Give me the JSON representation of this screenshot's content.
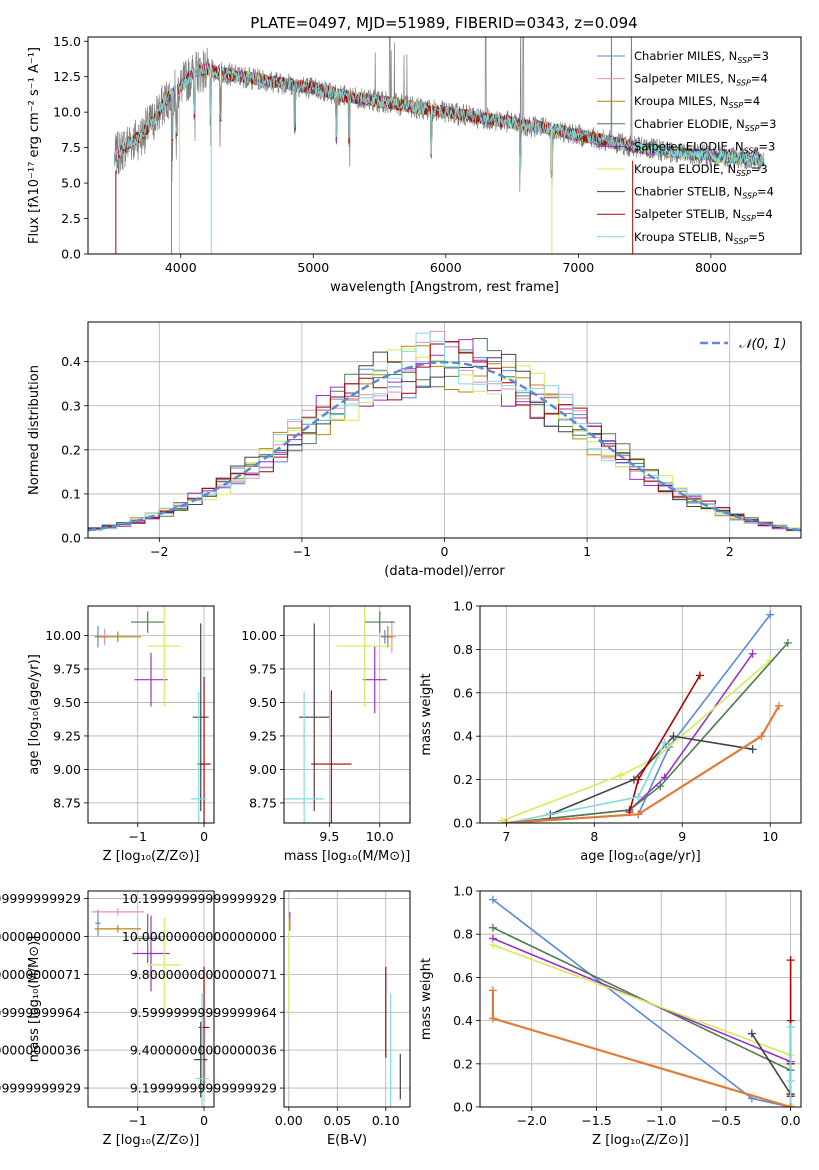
{
  "title": "PLATE=0497, MJD=51989, FIBERID=0343, z=0.094",
  "series_styles": [
    {
      "name": "Chabrier MILES",
      "nssp": "3",
      "color": "#5a8ad8"
    },
    {
      "name": "Salpeter MILES",
      "nssp": "4",
      "color": "#e88fc2"
    },
    {
      "name": "Kroupa MILES",
      "nssp": "4",
      "color": "#b8860b"
    },
    {
      "name": "Chabrier ELODIE",
      "nssp": "3",
      "color": "#4e7d4e"
    },
    {
      "name": "Salpeter ELODIE",
      "nssp": "3",
      "color": "#9932cc"
    },
    {
      "name": "Kroupa ELODIE",
      "nssp": "3",
      "color": "#d4ec5a"
    },
    {
      "name": "Chabrier STELIB",
      "nssp": "4",
      "color": "#444444"
    },
    {
      "name": "Salpeter STELIB",
      "nssp": "4",
      "color": "#b00000"
    },
    {
      "name": "Kroupa STELIB",
      "nssp": "5",
      "color": "#7fdbe0"
    }
  ],
  "extra_colors": {
    "data_gray": "#808080",
    "orange": "#e07b39",
    "normal_curve": "#5a8ad8"
  },
  "chart_data": [
    {
      "id": "spectrum",
      "type": "line",
      "xlabel": "wavelength [Angstrom, rest frame]",
      "ylabel": "Flux [fλ10⁻¹⁷ erg cm⁻² s⁻¹ A⁻¹]",
      "xlim": [
        3300,
        8680
      ],
      "ylim": [
        0,
        15.3
      ],
      "xticks": [
        4000,
        5000,
        6000,
        7000,
        8000
      ],
      "yticks": [
        0.0,
        2.5,
        5.0,
        7.5,
        10.0,
        12.5,
        15.0
      ],
      "legend": "top-right",
      "continuum_points": [
        [
          3500,
          6.8
        ],
        [
          3600,
          7.8
        ],
        [
          3700,
          8.3
        ],
        [
          3800,
          9.5
        ],
        [
          3900,
          11.0
        ],
        [
          4000,
          11.8
        ],
        [
          4100,
          12.8
        ],
        [
          4200,
          13.0
        ],
        [
          4400,
          12.6
        ],
        [
          4600,
          12.3
        ],
        [
          4800,
          12.0
        ],
        [
          5000,
          11.7
        ],
        [
          5200,
          11.2
        ],
        [
          5400,
          10.9
        ],
        [
          5600,
          10.6
        ],
        [
          5800,
          10.3
        ],
        [
          6000,
          10.0
        ],
        [
          6200,
          9.7
        ],
        [
          6400,
          9.4
        ],
        [
          6600,
          9.1
        ],
        [
          6800,
          8.8
        ],
        [
          7000,
          8.4
        ],
        [
          7200,
          8.0
        ],
        [
          7400,
          7.6
        ],
        [
          7600,
          7.3
        ],
        [
          7800,
          7.1
        ],
        [
          8000,
          6.9
        ],
        [
          8200,
          6.8
        ],
        [
          8400,
          6.6
        ]
      ],
      "absorption_lines": [
        3934,
        3968,
        4102,
        4227,
        4300,
        4861,
        5175,
        5270,
        5890,
        6563,
        6800
      ],
      "emission_spikes": [
        5577,
        6300,
        6565,
        6584,
        7250,
        7400
      ]
    },
    {
      "id": "residuals",
      "type": "histogram",
      "xlabel": "(data-model)/error",
      "ylabel": "Normed distribution",
      "xlim": [
        -2.5,
        2.5
      ],
      "ylim": [
        0,
        0.49
      ],
      "xticks": [
        -2,
        -1,
        0,
        1,
        2
      ],
      "yticks": [
        0.0,
        0.1,
        0.2,
        0.3,
        0.4
      ],
      "legend": "top-right",
      "normal_label": "𝒩(0, 1)",
      "bin_width": 0.1
    },
    {
      "id": "age_vs_Z",
      "type": "errorbar",
      "xlabel": "Z [log₁₀(Z/Z⊙)]",
      "ylabel": "age  [log₁₀(age/yr)]",
      "xlim": [
        -1.75,
        0.15
      ],
      "ylim": [
        8.6,
        10.22
      ],
      "xticks": [
        -1,
        0
      ],
      "yticks": [
        8.75,
        9.0,
        9.25,
        9.5,
        9.75,
        10.0
      ],
      "points": [
        {
          "s": 0,
          "x": -1.6,
          "y": 9.99,
          "xe": 0.04,
          "ye": 0.08
        },
        {
          "s": 1,
          "x": -1.5,
          "y": 9.99,
          "xe": 0.08,
          "ye": 0.06
        },
        {
          "s": 2,
          "x": -1.3,
          "y": 9.99,
          "xe": 0.35,
          "ye": 0.04
        },
        {
          "s": 3,
          "x": -0.85,
          "y": 10.1,
          "xe": 0.25,
          "ye": 0.08
        },
        {
          "s": 4,
          "x": -0.8,
          "y": 9.67,
          "xe": 0.25,
          "ye": 0.2
        },
        {
          "s": 5,
          "x": -0.6,
          "y": 9.92,
          "xe": 0.25,
          "ye": 0.45
        },
        {
          "s": 6,
          "x": -0.05,
          "y": 9.39,
          "xe": 0.12,
          "ye": 0.7
        },
        {
          "s": 7,
          "x": 0.0,
          "y": 9.04,
          "xe": 0.1,
          "ye": 0.65
        },
        {
          "s": 8,
          "x": -0.08,
          "y": 8.78,
          "xe": 0.12,
          "ye": 0.8
        }
      ]
    },
    {
      "id": "age_vs_mass",
      "type": "errorbar",
      "xlabel": "mass [log₁₀(M/M⊙)]",
      "ylabel": "",
      "xlim": [
        9.05,
        10.3
      ],
      "ylim": [
        8.6,
        10.22
      ],
      "xticks": [
        9.5,
        10.0
      ],
      "yticks": [
        8.75,
        9.0,
        9.25,
        9.5,
        9.75,
        10.0
      ],
      "points": [
        {
          "s": 0,
          "x": 10.05,
          "y": 9.99,
          "xe": 0.04,
          "ye": 0.05
        },
        {
          "s": 1,
          "x": 10.12,
          "y": 9.99,
          "xe": 0.04,
          "ye": 0.12
        },
        {
          "s": 2,
          "x": 10.08,
          "y": 9.99,
          "xe": 0.05,
          "ye": 0.08
        },
        {
          "s": 3,
          "x": 10.0,
          "y": 10.1,
          "xe": 0.15,
          "ye": 0.08
        },
        {
          "s": 4,
          "x": 9.95,
          "y": 9.67,
          "xe": 0.12,
          "ye": 0.25
        },
        {
          "s": 5,
          "x": 9.85,
          "y": 9.92,
          "xe": 0.28,
          "ye": 0.45
        },
        {
          "s": 6,
          "x": 9.35,
          "y": 9.39,
          "xe": 0.15,
          "ye": 0.7
        },
        {
          "s": 7,
          "x": 9.52,
          "y": 9.04,
          "xe": 0.2,
          "ye": 0.55
        },
        {
          "s": 8,
          "x": 9.25,
          "y": 8.78,
          "xe": 0.2,
          "ye": 0.8
        }
      ]
    },
    {
      "id": "weight_vs_age",
      "type": "line",
      "xlabel": "age  [log₁₀(age/yr)]",
      "ylabel": "mass weight",
      "xlim": [
        6.7,
        10.35
      ],
      "ylim": [
        0,
        1.0
      ],
      "xticks": [
        7,
        8,
        9,
        10
      ],
      "yticks": [
        0.0,
        0.2,
        0.4,
        0.6,
        0.8,
        1.0
      ],
      "series": [
        {
          "s": 0,
          "x": [
            7.0,
            8.5,
            8.85,
            10.0
          ],
          "y": [
            0.0,
            0.04,
            0.35,
            0.96
          ]
        },
        {
          "s": 4,
          "x": [
            7.0,
            8.4,
            8.8,
            9.8
          ],
          "y": [
            0.0,
            0.06,
            0.21,
            0.78
          ]
        },
        {
          "s": 5,
          "x": [
            6.95,
            8.3,
            8.7,
            10.0
          ],
          "y": [
            0.01,
            0.22,
            0.3,
            0.75
          ]
        },
        {
          "s": 3,
          "x": [
            7.0,
            8.4,
            8.75,
            10.2
          ],
          "y": [
            0.0,
            0.06,
            0.17,
            0.83
          ]
        },
        {
          "s": 6,
          "x": [
            7.5,
            8.45,
            8.9,
            9.8
          ],
          "y": [
            0.04,
            0.2,
            0.4,
            0.34
          ]
        },
        {
          "s": 7,
          "x": [
            8.4,
            8.5,
            9.2
          ],
          "y": [
            0.05,
            0.2,
            0.68
          ]
        },
        {
          "s": 8,
          "x": [
            7.0,
            8.5,
            8.8
          ],
          "y": [
            0.0,
            0.12,
            0.37
          ]
        },
        {
          "s": "orange",
          "x": [
            7.0,
            8.5,
            9.9,
            10.1
          ],
          "y": [
            0.0,
            0.04,
            0.4,
            0.54
          ]
        }
      ]
    },
    {
      "id": "mass_vs_Z",
      "type": "errorbar",
      "xlabel": "Z [log₁₀(Z/Z⊙)]",
      "ylabel": "mass [log₁₀(M/M⊙)]",
      "xlim": [
        -1.75,
        0.15
      ],
      "ylim": [
        9.1,
        10.24
      ],
      "xticks": [
        -1,
        0
      ],
      "yticks": [
        9.2,
        9.4,
        9.6,
        9.8,
        10.0,
        10.2
      ],
      "points": [
        {
          "s": 0,
          "x": -1.6,
          "y": 10.07,
          "xe": 0.04,
          "ye": 0.07
        },
        {
          "s": 1,
          "x": -1.3,
          "y": 10.13,
          "xe": 0.4,
          "ye": 0.02
        },
        {
          "s": 2,
          "x": -1.3,
          "y": 10.04,
          "xe": 0.35,
          "ye": 0.02
        },
        {
          "s": 3,
          "x": -0.85,
          "y": 9.99,
          "xe": 0.2,
          "ye": 0.13
        },
        {
          "s": 4,
          "x": -0.8,
          "y": 9.91,
          "xe": 0.28,
          "ye": 0.2
        },
        {
          "s": 5,
          "x": -0.6,
          "y": 9.85,
          "xe": 0.25,
          "ye": 0.25
        },
        {
          "s": 6,
          "x": -0.05,
          "y": 9.35,
          "xe": 0.1,
          "ye": 0.2
        },
        {
          "s": 7,
          "x": 0.0,
          "y": 9.52,
          "xe": 0.08,
          "ye": 0.32
        },
        {
          "s": 8,
          "x": -0.03,
          "y": 9.25,
          "xe": 0.1,
          "ye": 0.45
        }
      ]
    },
    {
      "id": "mass_vs_ebv",
      "type": "errorbar",
      "xlabel": "E(B-V)",
      "ylabel": "",
      "xlim": [
        -0.005,
        0.125
      ],
      "ylim": [
        9.1,
        10.24
      ],
      "xticks": [
        0.0,
        0.05,
        0.1
      ],
      "yticks": [
        9.2,
        9.4,
        9.6,
        9.8,
        10.0,
        10.2
      ],
      "points": [
        {
          "s": 4,
          "x": 0.001,
          "y": 10.08,
          "xe": 0.0,
          "ye": 0.05
        },
        {
          "s": 5,
          "x": 0.0,
          "y": 9.85,
          "xe": 0.0,
          "ye": 0.25
        },
        {
          "s": 7,
          "x": 0.1,
          "y": 9.6,
          "xe": 0.0,
          "ye": 0.24
        },
        {
          "s": 8,
          "x": 0.105,
          "y": 9.4,
          "xe": 0.0,
          "ye": 0.3
        },
        {
          "s": 6,
          "x": 0.115,
          "y": 9.26,
          "xe": 0.0,
          "ye": 0.12
        }
      ]
    },
    {
      "id": "weight_vs_Z",
      "type": "line",
      "xlabel": "Z [log₁₀(Z/Z⊙)]",
      "ylabel": "mass weight",
      "xlim": [
        -2.4,
        0.08
      ],
      "ylim": [
        0,
        1.0
      ],
      "xticks": [
        -2.0,
        -1.5,
        -1.0,
        -0.5,
        0.0
      ],
      "yticks": [
        0.0,
        0.2,
        0.4,
        0.6,
        0.8,
        1.0
      ],
      "series": [
        {
          "s": 0,
          "x": [
            -2.3,
            -0.3,
            0.0
          ],
          "y": [
            0.96,
            0.04,
            0.0
          ]
        },
        {
          "s": 3,
          "x": [
            -2.3,
            0.0,
            0.0
          ],
          "y": [
            0.83,
            0.17,
            0.0
          ]
        },
        {
          "s": 4,
          "x": [
            -2.3,
            0.0,
            0.0
          ],
          "y": [
            0.78,
            0.21,
            0.06
          ]
        },
        {
          "s": 5,
          "x": [
            -2.3,
            0.0,
            0.0
          ],
          "y": [
            0.75,
            0.24,
            0.01
          ]
        },
        {
          "s": 6,
          "x": [
            -0.3,
            0.0,
            0.0
          ],
          "y": [
            0.34,
            0.06,
            0.4
          ]
        },
        {
          "s": 7,
          "x": [
            0.0,
            0.0,
            0.0
          ],
          "y": [
            0.05,
            0.2,
            0.68
          ]
        },
        {
          "s": 8,
          "x": [
            0.0,
            0.0,
            0.0
          ],
          "y": [
            0.0,
            0.12,
            0.37
          ]
        },
        {
          "s": "orange",
          "x": [
            -2.3,
            -2.3,
            0.0
          ],
          "y": [
            0.54,
            0.41,
            0.0
          ]
        }
      ]
    }
  ]
}
